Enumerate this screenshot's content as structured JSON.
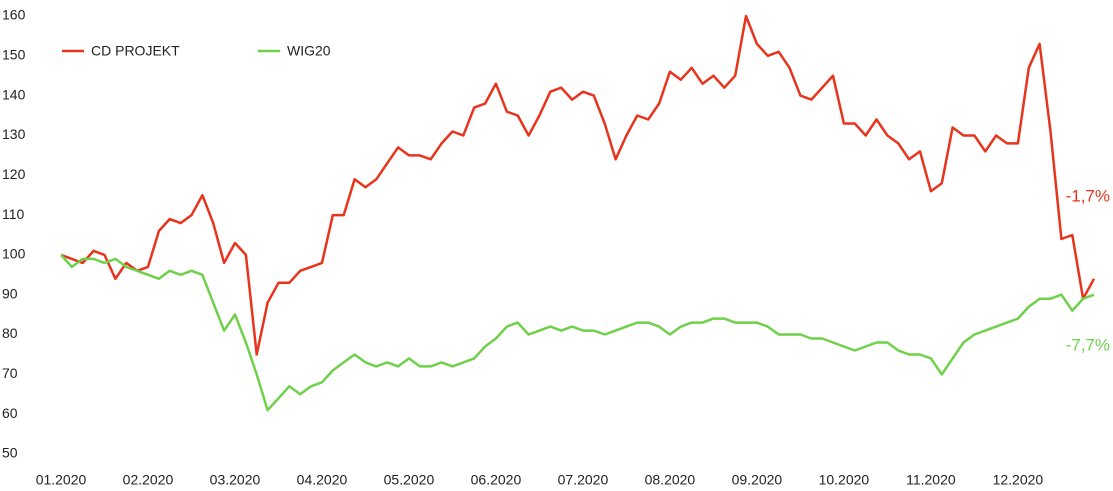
{
  "chart_data": {
    "type": "line",
    "categories": [
      "01.2020",
      null,
      null,
      null,
      null,
      null,
      null,
      null,
      "02.2020",
      null,
      null,
      null,
      null,
      null,
      null,
      null,
      "03.2020",
      null,
      null,
      null,
      null,
      null,
      null,
      null,
      "04.2020",
      null,
      null,
      null,
      null,
      null,
      null,
      null,
      "05.2020",
      null,
      null,
      null,
      null,
      null,
      null,
      null,
      "06.2020",
      null,
      null,
      null,
      null,
      null,
      null,
      null,
      "07.2020",
      null,
      null,
      null,
      null,
      null,
      null,
      null,
      "08.2020",
      null,
      null,
      null,
      null,
      null,
      null,
      null,
      "09.2020",
      null,
      null,
      null,
      null,
      null,
      null,
      null,
      "10.2020",
      null,
      null,
      null,
      null,
      null,
      null,
      null,
      "11.2020",
      null,
      null,
      null,
      null,
      null,
      null,
      null,
      "12.2020",
      null,
      null,
      null,
      null,
      null,
      null,
      null
    ],
    "series": [
      {
        "name": "CD PROJEKT",
        "color": "#e8341c",
        "values": [
          100,
          99,
          98,
          101,
          100,
          94,
          98,
          96,
          97,
          106,
          109,
          108,
          110,
          115,
          108,
          98,
          103,
          100,
          75,
          88,
          93,
          93,
          96,
          97,
          98,
          110,
          110,
          119,
          117,
          119,
          123,
          127,
          125,
          125,
          124,
          128,
          131,
          130,
          137,
          138,
          143,
          136,
          135,
          130,
          135,
          141,
          142,
          139,
          141,
          140,
          133,
          124,
          130,
          135,
          134,
          138,
          146,
          144,
          147,
          143,
          145,
          142,
          145,
          160,
          153,
          150,
          151,
          147,
          140,
          139,
          142,
          145,
          133,
          133,
          130,
          134,
          130,
          128,
          124,
          126,
          116,
          118,
          132,
          130,
          130,
          126,
          130,
          128,
          128,
          147,
          153,
          131,
          104,
          105,
          89,
          94
        ]
      },
      {
        "name": "WIG20",
        "color": "#6fd14a",
        "values": [
          100,
          97,
          99,
          99,
          98,
          99,
          97,
          96,
          95,
          94,
          96,
          95,
          96,
          95,
          88,
          81,
          85,
          78,
          70,
          61,
          64,
          67,
          65,
          67,
          68,
          71,
          73,
          75,
          73,
          72,
          73,
          72,
          74,
          72,
          72,
          73,
          72,
          73,
          74,
          77,
          79,
          82,
          83,
          80,
          81,
          82,
          81,
          82,
          81,
          81,
          80,
          81,
          82,
          83,
          83,
          82,
          80,
          82,
          83,
          83,
          84,
          84,
          83,
          83,
          83,
          82,
          80,
          80,
          80,
          79,
          79,
          78,
          77,
          76,
          77,
          78,
          78,
          76,
          75,
          75,
          74,
          70,
          74,
          78,
          80,
          81,
          82,
          83,
          84,
          87,
          89,
          89,
          90,
          86,
          89,
          90
        ]
      }
    ],
    "annotations": [
      "-1,7%",
      "-7,7%"
    ],
    "ylim": [
      50,
      160
    ],
    "yticks": [
      50,
      60,
      70,
      80,
      90,
      100,
      110,
      120,
      130,
      140,
      150,
      160
    ],
    "grid": false
  }
}
